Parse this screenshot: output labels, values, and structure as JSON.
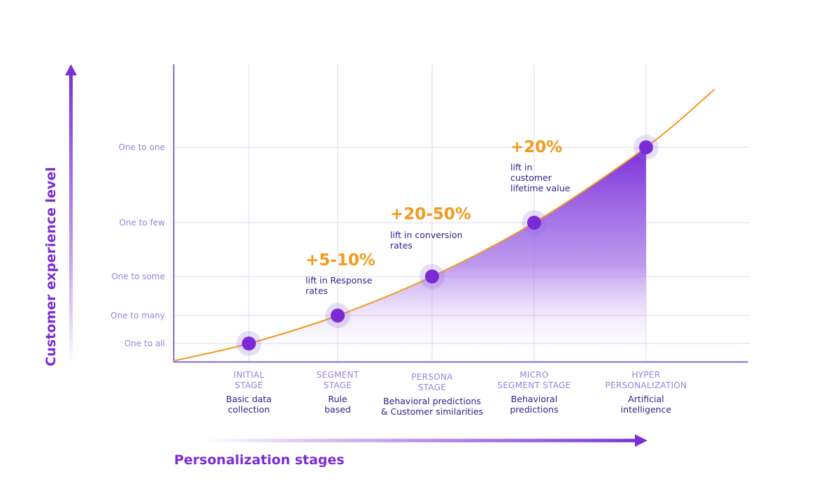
{
  "chart_data": {
    "type": "area",
    "xlabel": "Personalization stages",
    "ylabel": "Customer experience level",
    "y_levels": [
      "One to all",
      "One to many",
      "One to some",
      "One to few",
      "One to one"
    ],
    "stages": [
      {
        "title": [
          "INITIAL",
          "STAGE"
        ],
        "description": [
          "Basic data",
          "collection"
        ],
        "level": "One to all"
      },
      {
        "title": [
          "SEGMENT",
          "STAGE"
        ],
        "description": [
          "Rule",
          "based"
        ],
        "level": "One to many"
      },
      {
        "title": [
          "PERSONA",
          "STAGE"
        ],
        "description": [
          "Behavioral predictions",
          "& Customer similarities"
        ],
        "level": "One to some"
      },
      {
        "title": [
          "MICRO",
          "SEGMENT STAGE"
        ],
        "description": [
          "Behavioral",
          "predictions"
        ],
        "level": "One to few"
      },
      {
        "title": [
          "HYPER",
          "PERSONALIZATION"
        ],
        "description": [
          "Artificial",
          "intelligence"
        ],
        "level": "One to one"
      }
    ],
    "annotations": [
      {
        "value": "+5-10%",
        "text": [
          "lift in Response",
          "rates"
        ],
        "stage": "SEGMENT STAGE"
      },
      {
        "value": "+20-50%",
        "text": [
          "lift in conversion",
          "rates"
        ],
        "stage": "PERSONA STAGE"
      },
      {
        "value": "+20%",
        "text": [
          "lift in",
          "customer",
          "lifetime value"
        ],
        "stage": "MICRO SEGMENT STAGE"
      }
    ],
    "grid": true,
    "colors": {
      "curve": "#f39a1a",
      "area": "#7b2fd8",
      "point": "#7a2bd6",
      "grid": "#dcd8f0",
      "axis": "#5b3fc4",
      "level_text": "#9b82dc",
      "desc_text": "#2f1f8c",
      "lift_value": "#f39a1a"
    }
  }
}
